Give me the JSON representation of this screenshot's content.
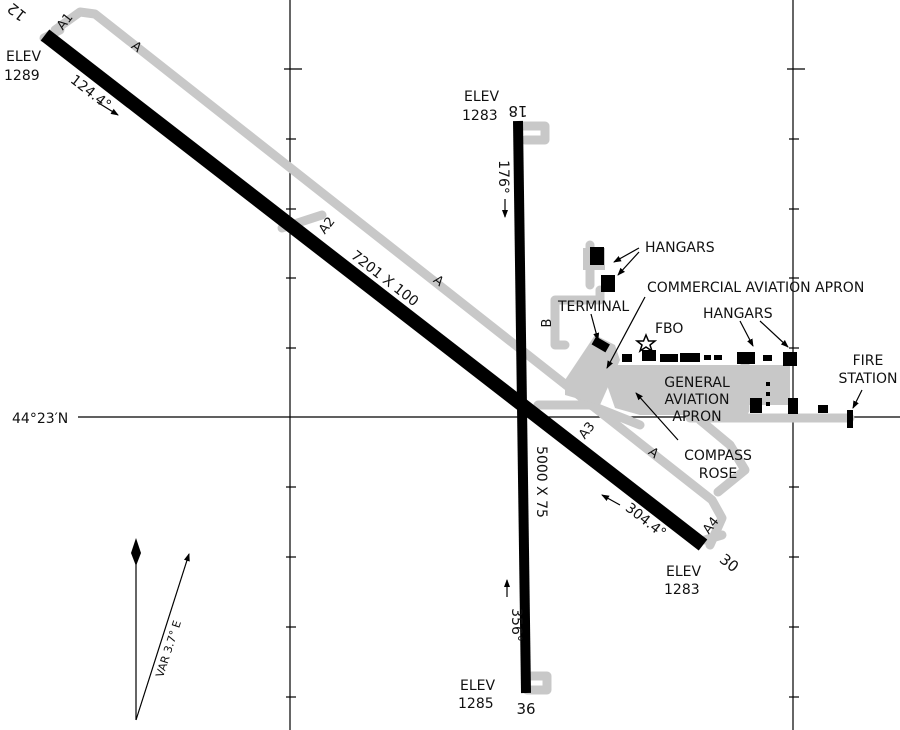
{
  "colors": {
    "runway": "#000000",
    "taxiway": "#c8c8c8",
    "grid": "#000000",
    "text": "#111111",
    "background": "#ffffff"
  },
  "latitude_label": "44°23′N",
  "runway_12_30": {
    "end_12": "12",
    "end_30": "30",
    "dimensions": "7201 X 100",
    "heading_12": "124.4°",
    "heading_30": "304.4°",
    "elev_12_label": "ELEV",
    "elev_12": "1289",
    "elev_30_label": "ELEV",
    "elev_30": "1283"
  },
  "runway_18_36": {
    "end_18": "18",
    "end_36": "36",
    "dimensions": "5000 X 75",
    "heading_18": "176°",
    "heading_36": "356°",
    "elev_18_label": "ELEV",
    "elev_18": "1283",
    "elev_36_label": "ELEV",
    "elev_36": "1285"
  },
  "taxiways": {
    "a": "A",
    "a1": "A1",
    "a2": "A2",
    "a3": "A3",
    "a4": "A4",
    "b": "B"
  },
  "facilities": {
    "hangars_north": "HANGARS",
    "commercial_apron": "COMMERCIAL AVIATION APRON",
    "terminal": "TERMINAL",
    "fbo": "FBO",
    "hangars_east": "HANGARS",
    "ga_apron": [
      "GENERAL",
      "AVIATION",
      "APRON"
    ],
    "compass_rose": [
      "COMPASS",
      "ROSE"
    ],
    "fire_station": [
      "FIRE",
      "STATION"
    ]
  },
  "variation": "VAR 3.7° E"
}
